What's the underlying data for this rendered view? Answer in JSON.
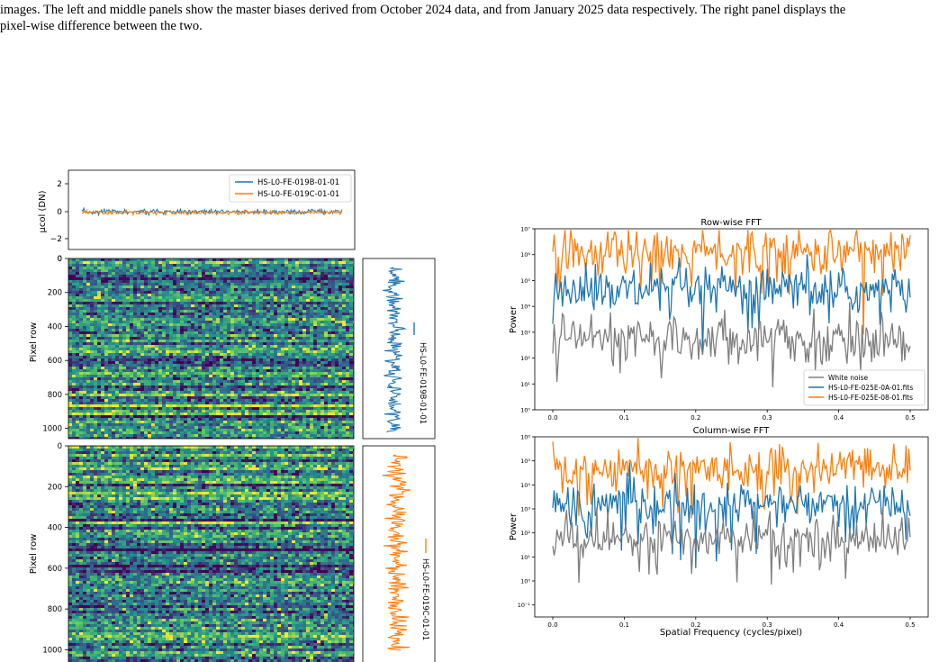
{
  "caption": {
    "line1": "images. The left and middle panels show the master biases derived from October 2024 data, and from January 2025 data respectively. The right panel displays the",
    "line2": "pixel-wise difference between the two."
  },
  "left_figure": {
    "profile_plot": {
      "ylabel": "μcol (DN)",
      "yticks": [
        "2",
        "0",
        "−2"
      ],
      "legend": [
        "HS-L0-FE-019B-01-01",
        "HS-L0-FE-019C-01-01"
      ],
      "colors": [
        "#1f77b4",
        "#ff7f0e"
      ]
    },
    "image_top": {
      "ylabel": "Pixel row",
      "yticks": [
        "0",
        "200",
        "400",
        "600",
        "800",
        "1000"
      ],
      "side_label": "HS-L0-FE-019B-01-01"
    },
    "image_bottom": {
      "ylabel": "Pixel row",
      "yticks": [
        "0",
        "200",
        "400",
        "600",
        "800",
        "1000"
      ],
      "side_label": "HS-L0-FE-019C-01-01"
    }
  },
  "chart_data": [
    {
      "type": "line",
      "title": "Row-wise FFT",
      "xlabel": "",
      "ylabel": "Power",
      "xlim": [
        0,
        0.5
      ],
      "ylim_log10": [
        0,
        7
      ],
      "log_y": true,
      "xticks": [
        "0.0",
        "0.1",
        "0.2",
        "0.3",
        "0.4",
        "0.5"
      ],
      "yticks": [
        "10⁰",
        "10¹",
        "10²",
        "10³",
        "10⁴",
        "10⁵",
        "10⁶",
        "10⁷"
      ],
      "legend_position": "lower-right",
      "series": [
        {
          "name": "White noise",
          "color": "#7f7f7f",
          "typical_log10_power": 2.8
        },
        {
          "name": "HS-L0-FE-025E-0A-01.fits",
          "color": "#1f77b4",
          "typical_log10_power": 4.6
        },
        {
          "name": "HS-L0-FE-025E-08-01.fits",
          "color": "#ff7f0e",
          "typical_log10_power": 6.1
        }
      ]
    },
    {
      "type": "line",
      "title": "Column-wise FFT",
      "xlabel": "Spatial Frequency (cycles/pixel)",
      "ylabel": "Power",
      "xlim": [
        0,
        0.5
      ],
      "ylim_log10": [
        -1.5,
        6
      ],
      "log_y": true,
      "xticks": [
        "0.0",
        "0.1",
        "0.2",
        "0.3",
        "0.4",
        "0.5"
      ],
      "yticks": [
        "10⁻¹",
        "10⁰",
        "10¹",
        "10²",
        "10³",
        "10⁴",
        "10⁵",
        "10⁶"
      ],
      "series": [
        {
          "color": "#7f7f7f",
          "typical_log10_power": 1.8
        },
        {
          "color": "#1f77b4",
          "typical_log10_power": 3.2
        },
        {
          "color": "#ff7f0e",
          "typical_log10_power": 4.7
        }
      ]
    }
  ]
}
